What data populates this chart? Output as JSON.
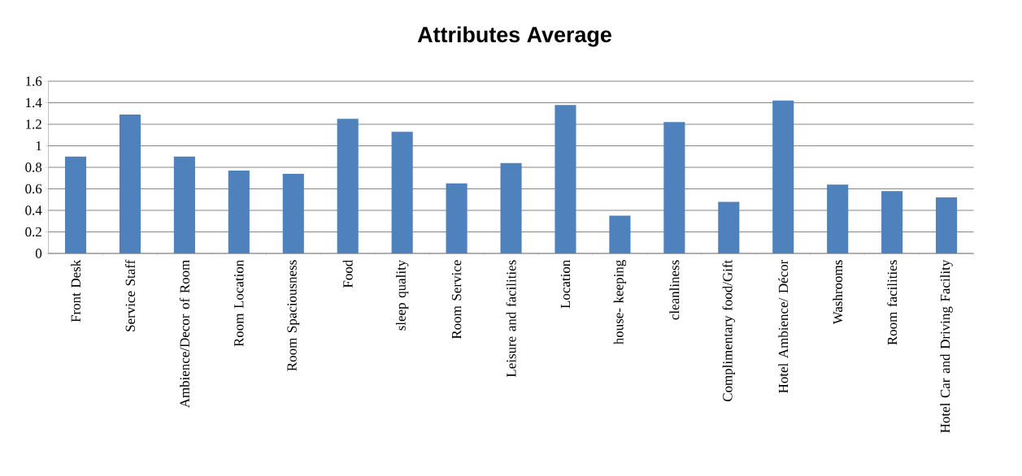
{
  "chart_data": {
    "type": "bar",
    "title": "Attributes Average",
    "categories": [
      "Front Desk",
      "Service Staff",
      "Ambience/Decor of Room",
      "Room Location",
      "Room Spaciousness",
      "Food",
      "sleep quality",
      "Room Service",
      "Leisure and facilities",
      "Location",
      "house- keeping",
      "cleanliness",
      "Complimentary food/Gift",
      "Hotel Ambience/ Décor",
      "Washrooms",
      "Room facilities",
      "Hotel Car and Driving Facility"
    ],
    "values": [
      0.9,
      1.29,
      0.9,
      0.77,
      0.74,
      1.25,
      1.13,
      0.65,
      0.84,
      1.38,
      0.35,
      1.22,
      0.48,
      1.42,
      0.64,
      0.58,
      0.52
    ],
    "color": "#4f81bd",
    "ylim": [
      0,
      1.6
    ],
    "yticks": [
      0,
      0.2,
      0.4,
      0.6,
      0.8,
      1,
      1.2,
      1.4,
      1.6
    ],
    "grid": "y"
  }
}
